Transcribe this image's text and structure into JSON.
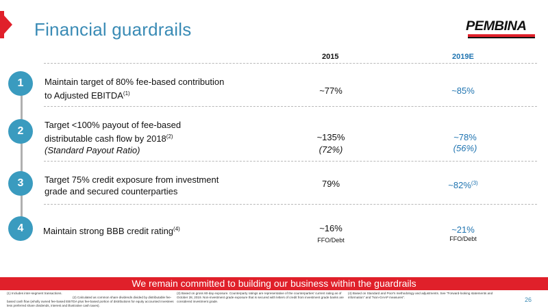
{
  "title": "Financial guardrails",
  "logo": {
    "text": "PEMBINA"
  },
  "columns": {
    "c2015": "2015",
    "c2019": "2019E"
  },
  "rows": [
    {
      "number": "1",
      "line1": "Maintain target of 80% fee-based contribution",
      "line2": "to Adjusted EBITDA",
      "line2_sup": "(1)",
      "v2015": "~77%",
      "v2019": "~85%"
    },
    {
      "number": "2",
      "line1": "Target <100% payout of fee-based",
      "line2": "distributable cash flow by 2018",
      "line2_sup": "(2)",
      "line3": "(Standard Payout Ratio)",
      "v2015": "~135%",
      "v2015_sub": "(72%)",
      "v2019": "~78%",
      "v2019_sub": "(56%)"
    },
    {
      "number": "3",
      "line1": "Target 75% credit exposure from investment",
      "line2": "grade and secured counterparties",
      "v2015": "79%",
      "v2019": "~82%",
      "v2019_sup": "(3)"
    },
    {
      "number": "4",
      "line1": "Maintain strong BBB credit rating",
      "line1_sup": "(4)",
      "v2015": "~16%",
      "v2015_sub": "FFO/Debt",
      "v2019": "~21%",
      "v2019_sub": "FFO/Debt"
    }
  ],
  "banner": "We remain committed to building our business within the guardrails",
  "footnotes": [
    "(1) Includes inter-segment transactions.",
    "(2) Calculated as common share dividends divided by distributable fee-based cash flow (wholly owned fee-based EBITDA plus fee-based portion of distributions for equity accounted investees less preferred share dividends, interest and illustrative cash taxes).",
    "(3) Based on gross 60-day exposure. Counterparty ratings are representative of the counterparties' current rating as of October 28, 2019. Non-investment grade exposure that is secured with letters of credit from investment grade banks are considered investment grade.",
    "(4) Based on Standard and Poor's methodology and adjustments. See \"Forward-looking statements and information\" and \"Non-GAAP measures\"."
  ],
  "page_number": "26",
  "colors": {
    "accent_red": "#e0202a",
    "title_blue": "#3a8bb5",
    "circle_blue": "#3a9bbf",
    "estimate_blue": "#1e73b0"
  }
}
